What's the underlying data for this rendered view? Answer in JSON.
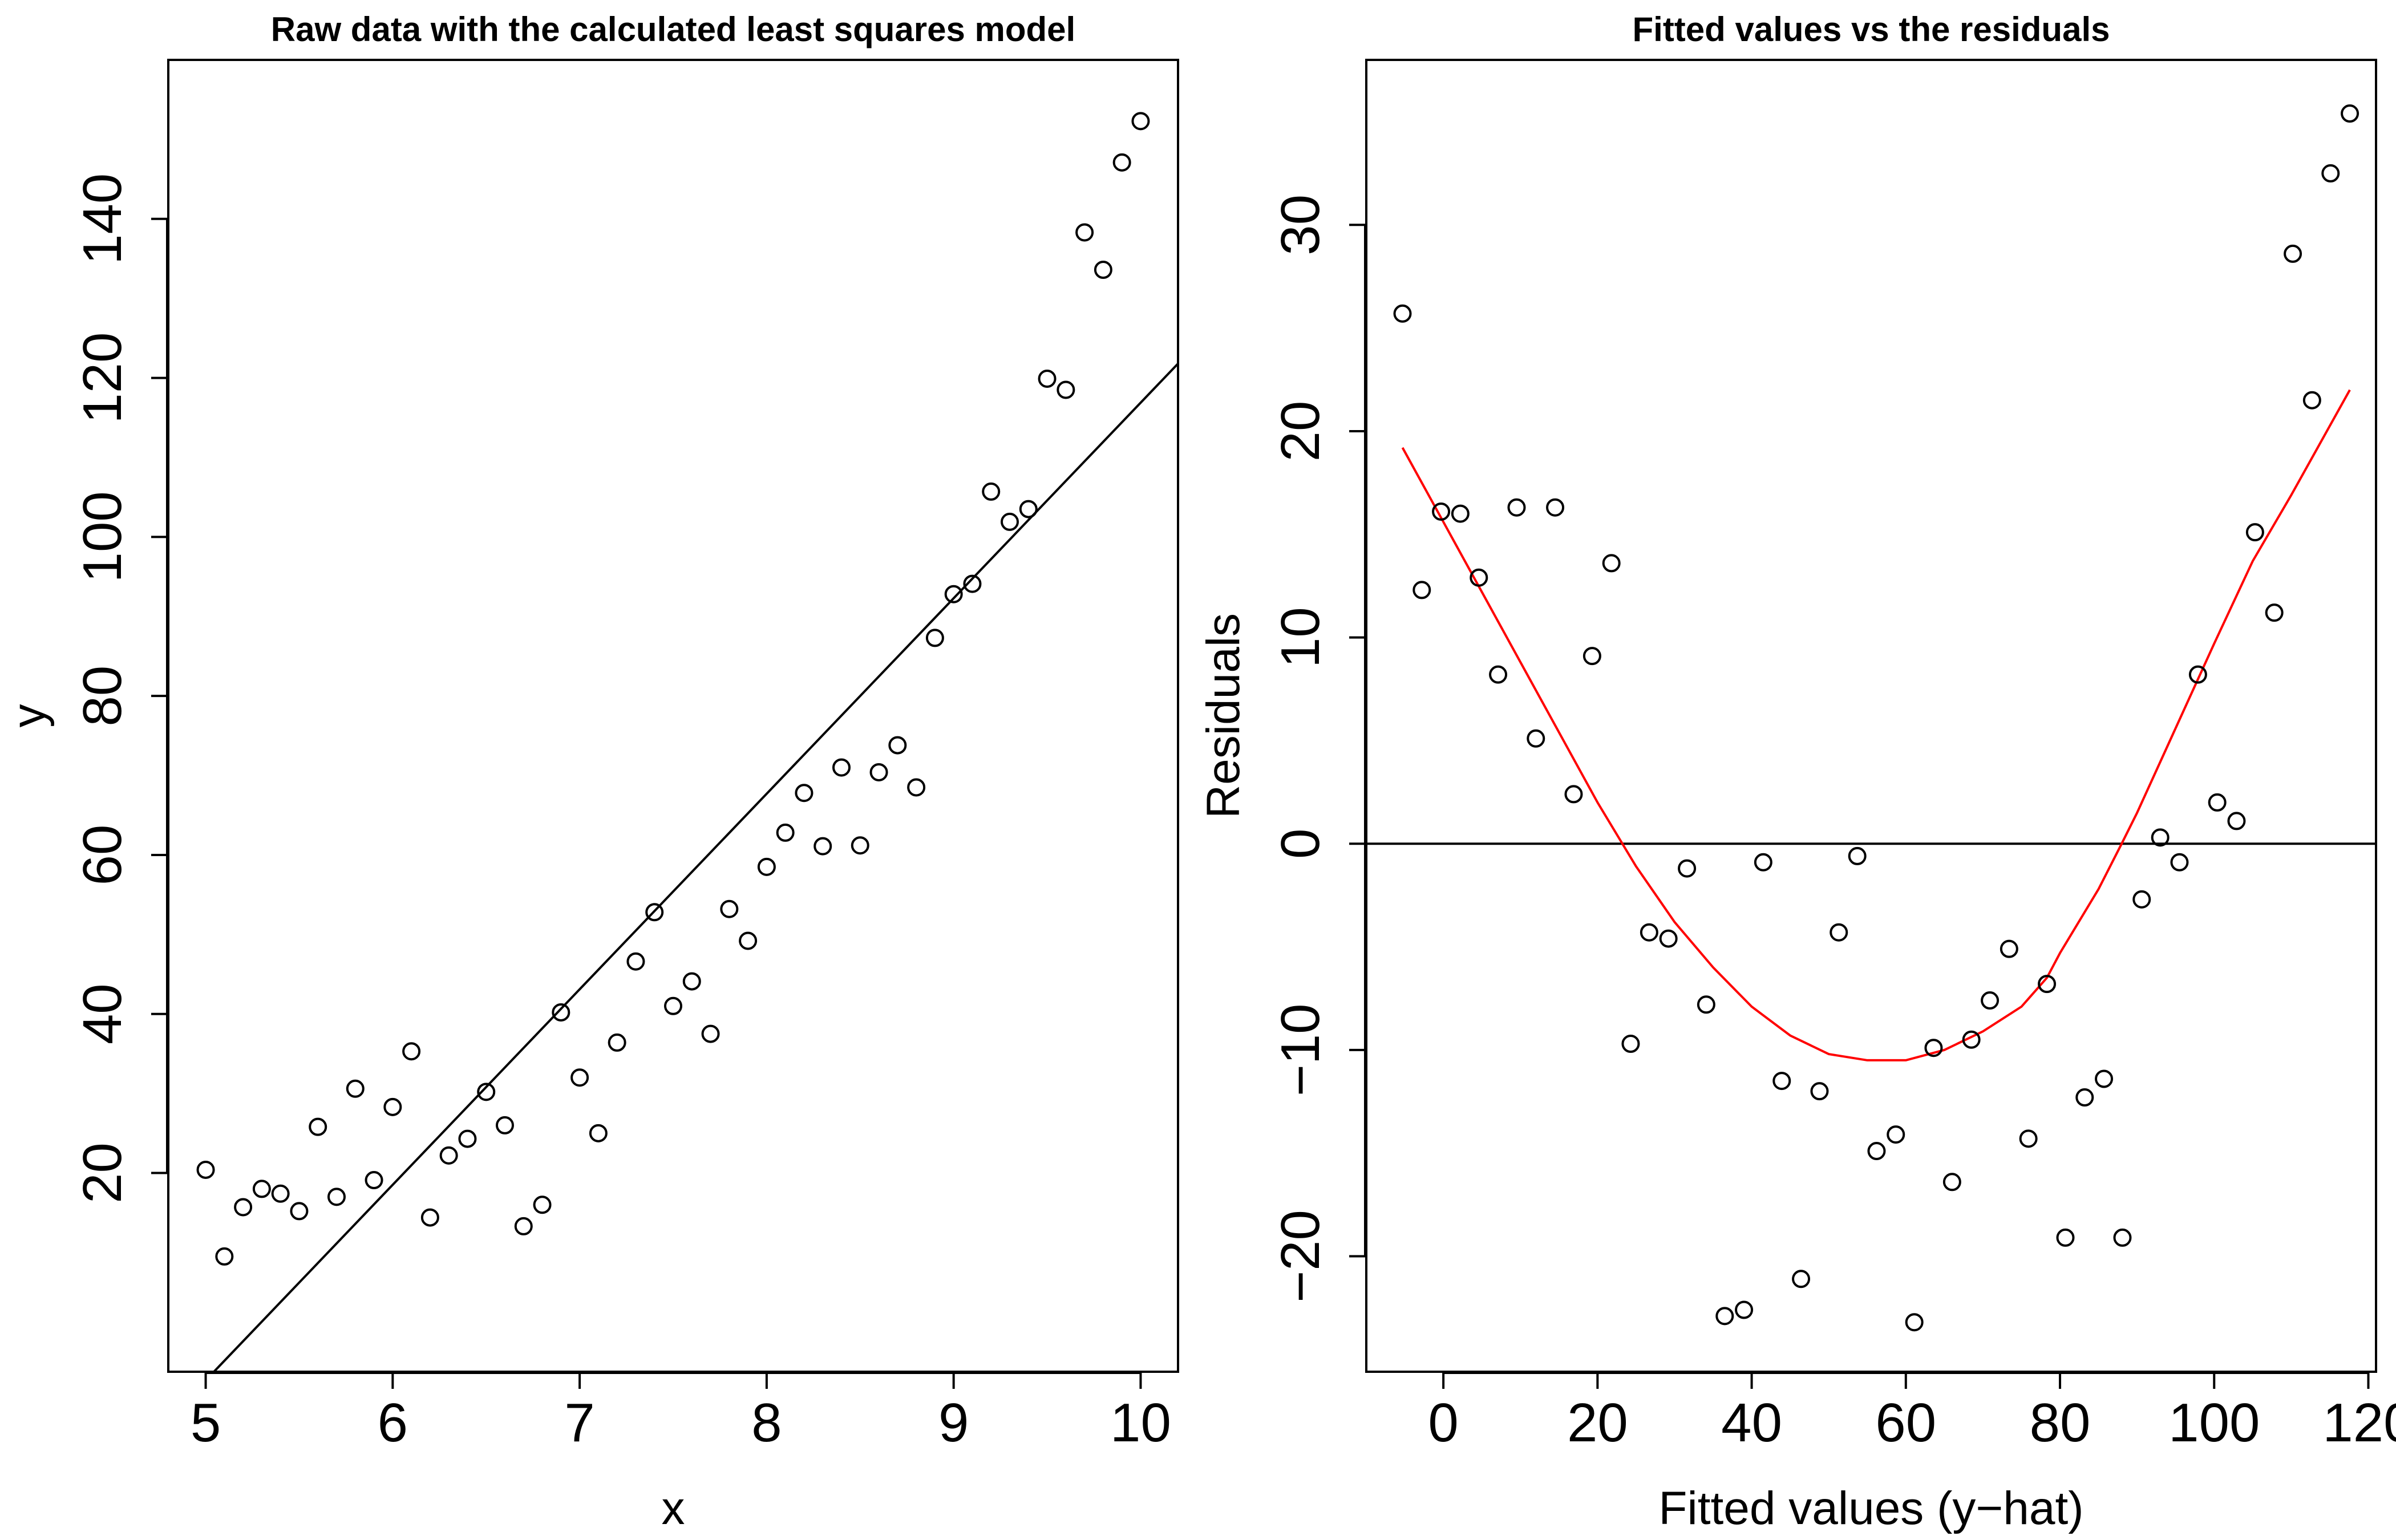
{
  "chart_data": [
    {
      "type": "scatter",
      "title": "Raw data with the calculated least squares model",
      "xlabel": "x",
      "ylabel": "y",
      "xlim": [
        4.8,
        10.2
      ],
      "ylim": [
        -5,
        160
      ],
      "x_ticks": [
        5,
        6,
        7,
        8,
        9,
        10
      ],
      "x_tick_labels": [
        "5",
        "6",
        "7",
        "8",
        "9",
        "10"
      ],
      "y_ticks": [
        20,
        40,
        60,
        80,
        100,
        120,
        140
      ],
      "y_tick_labels": [
        "20",
        "40",
        "60",
        "80",
        "100",
        "120",
        "140"
      ],
      "grid": false,
      "series": [
        {
          "points": [
            [
              5.0,
              20.4
            ],
            [
              5.1,
              9.5
            ],
            [
              5.2,
              15.7
            ],
            [
              5.3,
              18.0
            ],
            [
              5.4,
              17.4
            ],
            [
              5.5,
              15.2
            ],
            [
              5.6,
              25.8
            ],
            [
              5.7,
              17.0
            ],
            [
              5.8,
              30.6
            ],
            [
              5.9,
              19.1
            ],
            [
              6.0,
              28.3
            ],
            [
              6.1,
              35.3
            ],
            [
              6.2,
              14.4
            ],
            [
              6.3,
              22.2
            ],
            [
              6.4,
              24.3
            ],
            [
              6.5,
              30.2
            ],
            [
              6.6,
              26.0
            ],
            [
              6.7,
              13.3
            ],
            [
              6.8,
              16.0
            ],
            [
              6.9,
              40.2
            ],
            [
              7.0,
              32.0
            ],
            [
              7.1,
              25.0
            ],
            [
              7.2,
              36.4
            ],
            [
              7.3,
              46.6
            ],
            [
              7.4,
              52.8
            ],
            [
              7.5,
              41.0
            ],
            [
              7.6,
              44.1
            ],
            [
              7.7,
              37.5
            ],
            [
              7.8,
              53.2
            ],
            [
              7.9,
              49.2
            ],
            [
              8.0,
              58.5
            ],
            [
              8.1,
              62.8
            ],
            [
              8.2,
              67.8
            ],
            [
              8.3,
              61.1
            ],
            [
              8.4,
              71.0
            ],
            [
              8.5,
              61.2
            ],
            [
              8.6,
              70.4
            ],
            [
              8.7,
              73.8
            ],
            [
              8.8,
              68.5
            ],
            [
              8.9,
              87.3
            ],
            [
              9.0,
              92.8
            ],
            [
              9.1,
              94.1
            ],
            [
              9.2,
              105.7
            ],
            [
              9.3,
              101.9
            ],
            [
              9.4,
              103.5
            ],
            [
              9.5,
              119.9
            ],
            [
              9.6,
              118.5
            ],
            [
              9.7,
              138.3
            ],
            [
              9.8,
              133.6
            ],
            [
              9.9,
              147.1
            ],
            [
              10.0,
              152.3
            ]
          ]
        }
      ],
      "fitted_line": {
        "x": [
          4.8,
          10.2
        ],
        "y": [
          -11.0,
          121.8
        ],
        "color": "#000000"
      }
    },
    {
      "type": "scatter",
      "title": "Fitted values vs the residuals",
      "xlabel": "Fitted values (y−hat)",
      "ylabel": "Residuals",
      "xlim": [
        -10,
        121
      ],
      "ylim": [
        -25.6,
        38
      ],
      "x_ticks": [
        0,
        20,
        40,
        60,
        80,
        100,
        120
      ],
      "x_tick_labels": [
        "0",
        "20",
        "40",
        "60",
        "80",
        "100",
        "120"
      ],
      "y_ticks": [
        -20,
        -10,
        0,
        10,
        20,
        30
      ],
      "y_tick_labels": [
        "−20",
        "−10",
        "0",
        "10",
        "20",
        "30"
      ],
      "grid": false,
      "zero_line": 0,
      "series": [
        {
          "points": [
            [
              -5.3,
              25.7
            ],
            [
              -2.8,
              12.3
            ],
            [
              -0.3,
              16.1
            ],
            [
              2.2,
              16.0
            ],
            [
              4.6,
              12.9
            ],
            [
              7.1,
              8.2
            ],
            [
              9.5,
              16.3
            ],
            [
              12.0,
              5.1
            ],
            [
              14.5,
              16.3
            ],
            [
              16.9,
              2.4
            ],
            [
              19.3,
              9.1
            ],
            [
              21.8,
              13.6
            ],
            [
              24.3,
              -9.7
            ],
            [
              26.7,
              -4.3
            ],
            [
              29.2,
              -4.6
            ],
            [
              31.6,
              -1.2
            ],
            [
              34.1,
              -7.8
            ],
            [
              36.5,
              -22.9
            ],
            [
              39.0,
              -22.6
            ],
            [
              41.5,
              -0.9
            ],
            [
              43.9,
              -11.5
            ],
            [
              46.4,
              -21.1
            ],
            [
              48.8,
              -12.0
            ],
            [
              51.3,
              -4.3
            ],
            [
              53.7,
              -0.6
            ],
            [
              56.2,
              -14.9
            ],
            [
              58.7,
              -14.1
            ],
            [
              61.1,
              -23.2
            ],
            [
              63.6,
              -9.9
            ],
            [
              66.0,
              -16.4
            ],
            [
              68.5,
              -9.5
            ],
            [
              70.9,
              -7.6
            ],
            [
              73.4,
              -5.1
            ],
            [
              75.9,
              -14.3
            ],
            [
              78.3,
              -6.8
            ],
            [
              80.7,
              -19.1
            ],
            [
              83.2,
              -12.3
            ],
            [
              85.7,
              -11.4
            ],
            [
              88.1,
              -19.1
            ],
            [
              90.6,
              -2.7
            ],
            [
              93.0,
              0.3
            ],
            [
              95.5,
              -0.9
            ],
            [
              97.9,
              8.2
            ],
            [
              100.4,
              2.0
            ],
            [
              102.9,
              1.1
            ],
            [
              105.3,
              15.1
            ],
            [
              107.8,
              11.2
            ],
            [
              110.2,
              28.6
            ],
            [
              112.7,
              21.5
            ],
            [
              115.1,
              32.5
            ],
            [
              117.6,
              35.4
            ]
          ]
        }
      ],
      "smooth_curve": {
        "color": "#ff0000",
        "x": [
          -5.3,
          0,
          5,
          10,
          15,
          20,
          25,
          30,
          35,
          40,
          45,
          50,
          55,
          60,
          65,
          70,
          75,
          78.3,
          80,
          85,
          88,
          90,
          95,
          100,
          105,
          110,
          117.6
        ],
        "y": [
          19.2,
          15.6,
          12.2,
          8.8,
          5.4,
          2.0,
          -1.1,
          -3.8,
          -6.0,
          -7.9,
          -9.3,
          -10.2,
          -10.5,
          -10.5,
          -10.0,
          -9.1,
          -7.9,
          -6.5,
          -5.3,
          -2.2,
          0.0,
          1.5,
          5.6,
          9.7,
          13.7,
          16.9,
          22.0
        ]
      }
    }
  ]
}
